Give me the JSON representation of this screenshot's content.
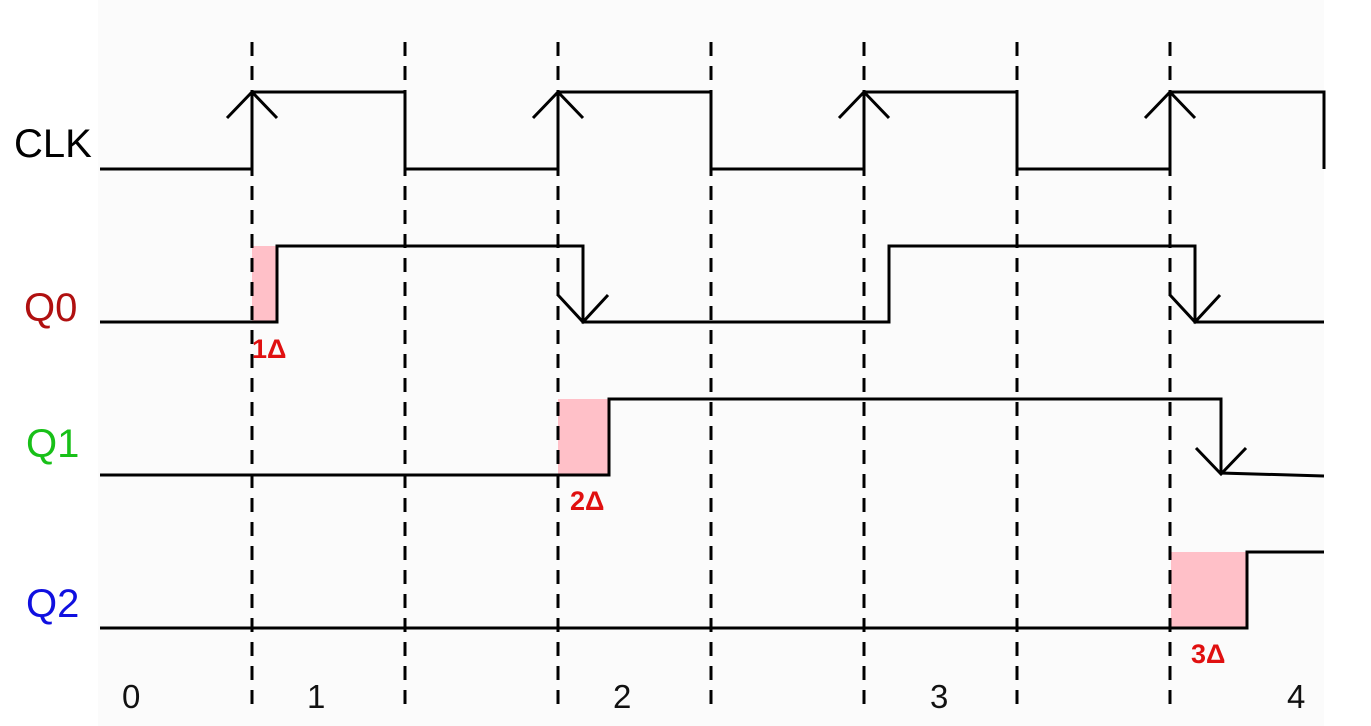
{
  "signals": [
    {
      "id": "clk",
      "label": "CLK",
      "color": "#000000"
    },
    {
      "id": "q0",
      "label": "Q0",
      "color": "#b01010"
    },
    {
      "id": "q1",
      "label": "Q1",
      "color": "#18c018"
    },
    {
      "id": "q2",
      "label": "Q2",
      "color": "#1010e0"
    }
  ],
  "delays": [
    {
      "label": "1Δ"
    },
    {
      "label": "2Δ"
    },
    {
      "label": "3Δ"
    }
  ],
  "counts": [
    "0",
    "1",
    "2",
    "3",
    "4"
  ],
  "colors": {
    "trace": "#000000",
    "delay_fill": "#ffc0c8",
    "delay_text": "#e01010"
  }
}
